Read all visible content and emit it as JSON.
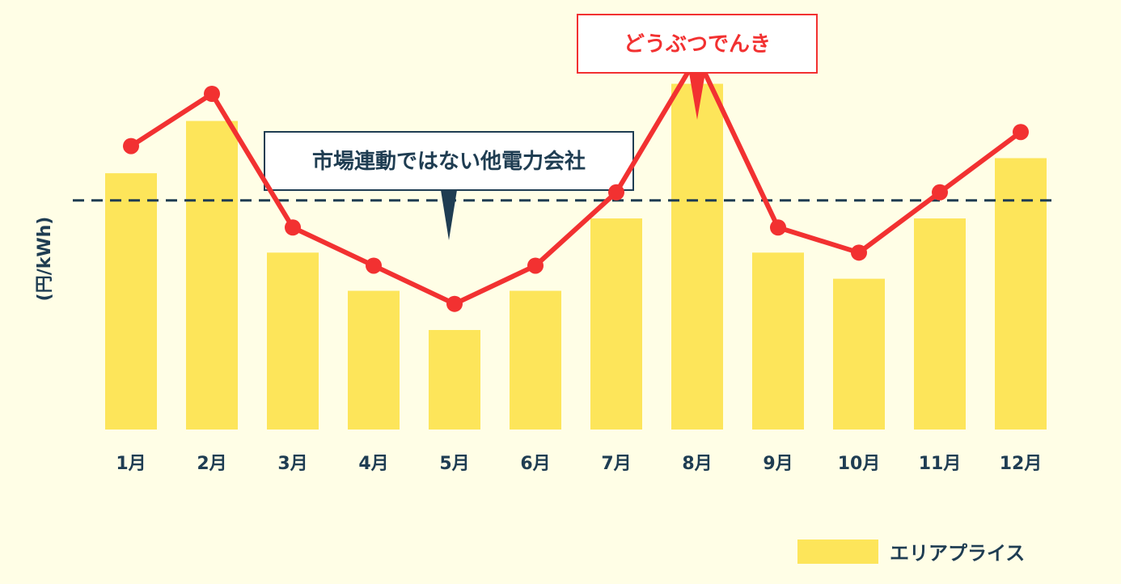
{
  "chart_data": {
    "type": "bar",
    "categories": [
      "1月",
      "2月",
      "3月",
      "4月",
      "5月",
      "6月",
      "7月",
      "8月",
      "9月",
      "10月",
      "11月",
      "12月"
    ],
    "ylabel": "(円/kWh)",
    "series": [
      {
        "name": "エリアプライス",
        "type": "bar",
        "values": [
          25.5,
          30.7,
          17.6,
          13.8,
          9.9,
          13.8,
          21.0,
          34.4,
          17.6,
          15.0,
          21.0,
          27.0
        ]
      },
      {
        "name": "",
        "type": "line",
        "values": [
          28.2,
          33.4,
          20.1,
          16.3,
          12.5,
          16.3,
          23.6,
          37.1,
          20.1,
          17.6,
          23.6,
          29.6
        ]
      }
    ],
    "reference_line": {
      "value": 22.8
    },
    "callouts": {
      "line": "どうぶつでんき",
      "reference": "市場連動ではない他電力会社"
    },
    "ylim": [
      0,
      40
    ],
    "grid": false,
    "legend": {
      "position": "bottom-right",
      "label": "エリアプライス"
    }
  },
  "colors": {
    "bar": "#fde55a",
    "line": "#f23131",
    "reference": "#1f3d52",
    "text": "#1f3d52",
    "background": "#fffee6"
  }
}
